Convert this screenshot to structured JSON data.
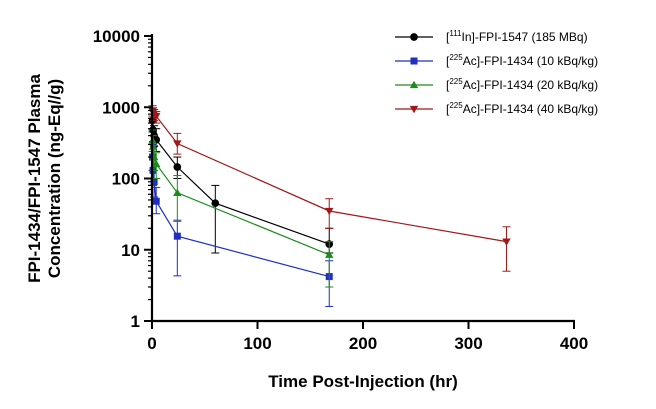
{
  "chart_data": {
    "type": "line",
    "title": "",
    "xlabel": "Time Post-Injection (hr)",
    "ylabel_lines": [
      "FPI-1434/FPI-1547 Plasma",
      "Concentration (ng-Eq//g)"
    ],
    "yscale": "log",
    "xlim": [
      0,
      400
    ],
    "ylim": [
      1,
      10000
    ],
    "xticks": [
      0,
      100,
      200,
      300,
      400
    ],
    "xtick_labels": [
      "0",
      "100",
      "200",
      "300",
      "400"
    ],
    "yticks": [
      1,
      10,
      100,
      1000,
      10000
    ],
    "ytick_labels": [
      "1",
      "10",
      "100",
      "1000",
      "10000"
    ],
    "legend_position": "top-right",
    "series": [
      {
        "key": "in111",
        "name": "[111In]-FPI-1547 (185 MBq)",
        "legend_sup": "111",
        "legend_pre": "[",
        "legend_post": "In]-FPI-1547 (185 MBq)",
        "color": "#000000",
        "marker": "circle",
        "x": [
          0.5,
          1,
          2,
          4,
          24,
          60,
          168
        ],
        "y": [
          650,
          480,
          400,
          350,
          145,
          45,
          12
        ],
        "err_upper": [
          900,
          650,
          550,
          500,
          200,
          80,
          20
        ],
        "err_lower": [
          450,
          330,
          280,
          240,
          100,
          9,
          9
        ]
      },
      {
        "key": "ac10",
        "name": "[225Ac]-FPI-1434 (10 kBq/kg)",
        "legend_sup": "225",
        "legend_pre": "[",
        "legend_post": "Ac]-FPI-1434 (10 kBq/kg)",
        "color": "#1f2fbf",
        "marker": "square",
        "x": [
          0.5,
          1,
          2,
          4,
          24,
          168
        ],
        "y": [
          200,
          130,
          90,
          48,
          15.5,
          4.2
        ],
        "err_upper": [
          300,
          190,
          130,
          75,
          26,
          7
        ],
        "err_lower": [
          130,
          80,
          55,
          32,
          4.3,
          1.6
        ]
      },
      {
        "key": "ac20",
        "name": "[225Ac]-FPI-1434 (20 kBq/kg)",
        "legend_sup": "225",
        "legend_pre": "[",
        "legend_post": "Ac]-FPI-1434 (20 kBq/kg)",
        "color": "#1a8c1a",
        "marker": "triangle-up",
        "x": [
          0.5,
          1,
          2,
          4,
          24,
          168
        ],
        "y": [
          340,
          280,
          200,
          160,
          63,
          8.5
        ],
        "err_upper": [
          480,
          400,
          290,
          230,
          110,
          13
        ],
        "err_lower": [
          240,
          190,
          130,
          100,
          25,
          3
        ]
      },
      {
        "key": "ac40",
        "name": "[225Ac]-FPI-1434 (40 kBq/kg)",
        "legend_sup": "225",
        "legend_pre": "[",
        "legend_post": "Ac]-FPI-1434 (40 kBq/kg)",
        "color": "#a01818",
        "marker": "triangle-down",
        "x": [
          0.5,
          1,
          2,
          4,
          24,
          168,
          336
        ],
        "y": [
          900,
          850,
          800,
          750,
          310,
          35,
          13
        ],
        "err_upper": [
          1050,
          980,
          930,
          870,
          430,
          52,
          21
        ],
        "err_lower": [
          750,
          700,
          650,
          600,
          220,
          20,
          5
        ]
      }
    ]
  }
}
